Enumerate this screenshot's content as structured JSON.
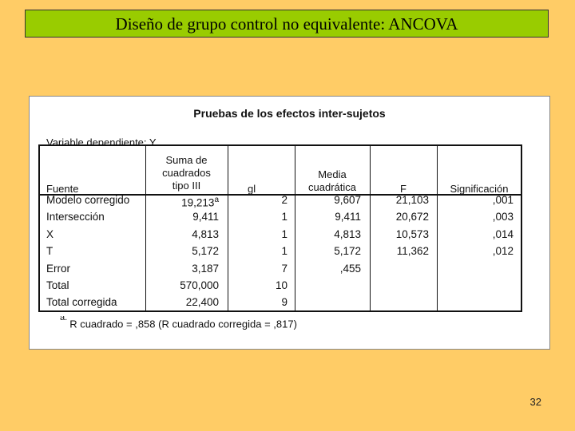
{
  "slide": {
    "title": "Diseño de grupo control no equivalente: ANCOVA",
    "page_number": "32",
    "colors": {
      "background": "#ffcc66",
      "title_bar": "#99cc00"
    }
  },
  "table": {
    "title": "Pruebas de los efectos inter-sujetos",
    "dependent_variable": "Variable dependiente: Y",
    "headers": {
      "fuente": "Fuente",
      "suma_1": "Suma de",
      "suma_2": "cuadrados",
      "suma_3": "tipo III",
      "gl": "gl",
      "media_1": "Media",
      "media_2": "cuadrática",
      "f": "F",
      "sig": "Significación"
    },
    "rows": [
      {
        "fuente": "Modelo corregido",
        "suma": "19,213",
        "sup": "a",
        "gl": "2",
        "media": "9,607",
        "f": "21,103",
        "sig": ",001"
      },
      {
        "fuente": "Intersección",
        "suma": "9,411",
        "gl": "1",
        "media": "9,411",
        "f": "20,672",
        "sig": ",003"
      },
      {
        "fuente": "X",
        "suma": "4,813",
        "gl": "1",
        "media": "4,813",
        "f": "10,573",
        "sig": ",014"
      },
      {
        "fuente": "T",
        "suma": "5,172",
        "gl": "1",
        "media": "5,172",
        "f": "11,362",
        "sig": ",012"
      },
      {
        "fuente": "Error",
        "suma": "3,187",
        "gl": "7",
        "media": ",455",
        "f": "",
        "sig": ""
      },
      {
        "fuente": "Total",
        "suma": "570,000",
        "gl": "10",
        "media": "",
        "f": "",
        "sig": ""
      },
      {
        "fuente": "Total corregida",
        "suma": "22,400",
        "gl": "9",
        "media": "",
        "f": "",
        "sig": ""
      }
    ],
    "footnote_marker": "a.",
    "footnote": "R cuadrado = ,858 (R cuadrado corregida = ,817)"
  }
}
